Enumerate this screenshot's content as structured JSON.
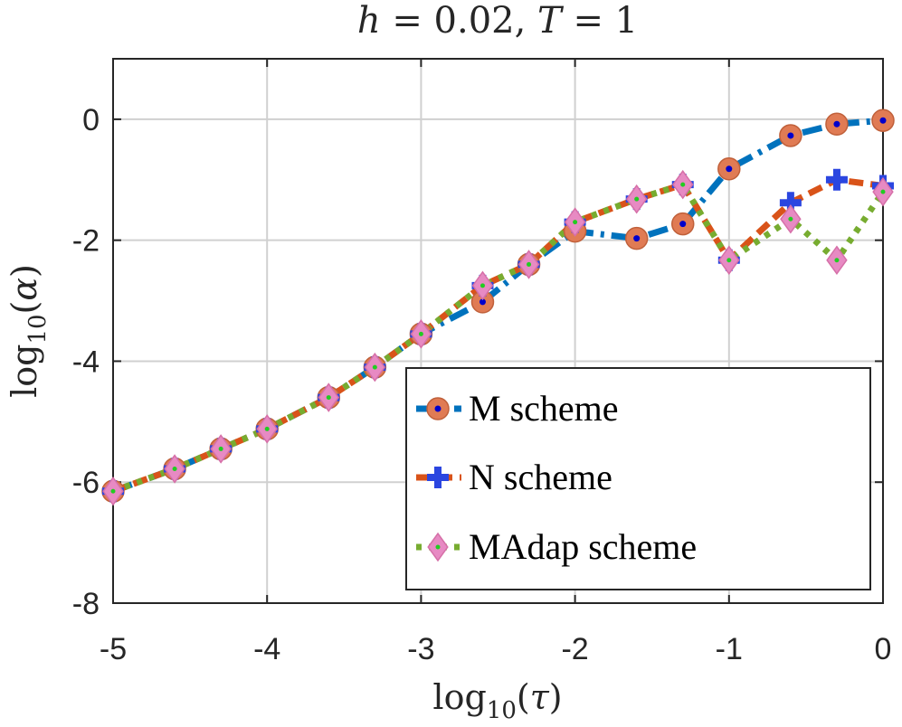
{
  "chart_data": {
    "type": "line",
    "title": "h = 0.02, T = 1",
    "xlabel": "log10(τ)",
    "ylabel": "log10(α)",
    "xlim": [
      -5,
      0
    ],
    "ylim": [
      -8,
      1
    ],
    "xticks": [
      "-5",
      "-4",
      "-3",
      "-2",
      "-1",
      "0"
    ],
    "yticks": [
      "0",
      "-2",
      "-4",
      "-6",
      "-8"
    ],
    "grid": true,
    "legend_position": "bottom-right",
    "series": [
      {
        "name": "M scheme",
        "color": "#0072BD",
        "marker_color": "#E07B54",
        "x": [
          -5,
          -4.6,
          -4.3,
          -4,
          -3.6,
          -3.3,
          -3,
          -2.6,
          -2.3,
          -2,
          -1.6,
          -1.3,
          -1,
          -0.6,
          -0.3,
          0
        ],
        "y": [
          -6.15,
          -5.78,
          -5.45,
          -5.12,
          -4.6,
          -4.1,
          -3.55,
          -3.02,
          -2.4,
          -1.85,
          -1.97,
          -1.73,
          -0.82,
          -0.27,
          -0.08,
          -0.02
        ]
      },
      {
        "name": "N scheme",
        "color": "#D95319",
        "marker_color": "#2B46E0",
        "x": [
          -5,
          -4.6,
          -4.3,
          -4,
          -3.6,
          -3.3,
          -3,
          -2.6,
          -2.3,
          -2,
          -1.6,
          -1.3,
          -1,
          -0.6,
          -0.3,
          0
        ],
        "y": [
          -6.15,
          -5.78,
          -5.45,
          -5.12,
          -4.6,
          -4.1,
          -3.55,
          -2.75,
          -2.4,
          -1.7,
          -1.32,
          -1.08,
          -2.33,
          -1.38,
          -1.0,
          -1.1
        ]
      },
      {
        "name": "MAdap scheme",
        "color": "#77AC30",
        "marker_color": "#E78AC3",
        "x": [
          -5,
          -4.6,
          -4.3,
          -4,
          -3.6,
          -3.3,
          -3,
          -2.6,
          -2.3,
          -2,
          -1.6,
          -1.3,
          -1,
          -0.6,
          -0.3,
          0
        ],
        "y": [
          -6.15,
          -5.78,
          -5.45,
          -5.12,
          -4.6,
          -4.1,
          -3.55,
          -2.75,
          -2.4,
          -1.7,
          -1.32,
          -1.08,
          -2.33,
          -1.65,
          -2.33,
          -1.2
        ]
      }
    ]
  }
}
